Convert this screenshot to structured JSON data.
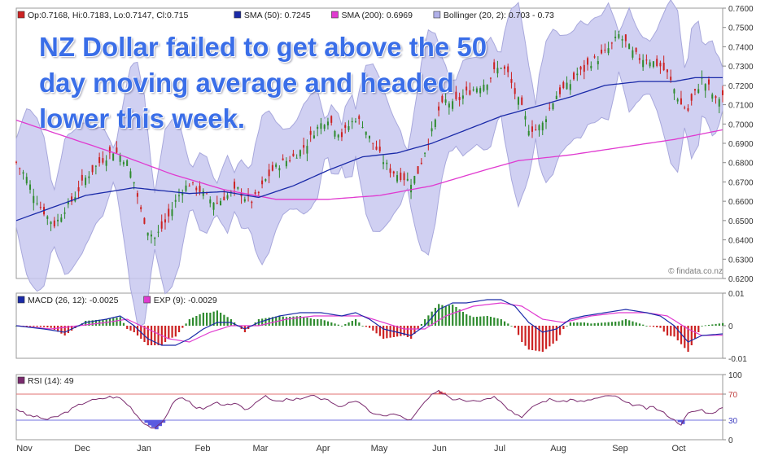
{
  "headline": {
    "lines": [
      "NZ Dollar failed to get above the 50",
      "day moving average and headed",
      "lower this week."
    ]
  },
  "watermark": "© findata.co.nz",
  "colors": {
    "bull_candle": "#2e8b2e",
    "bear_candle": "#cc2222",
    "sma50": "#1a2aa8",
    "sma200": "#e03ad0",
    "bollinger_fill": "#c8c8f0",
    "bollinger_edge": "#a8a8dc",
    "macd_line": "#1a2aa8",
    "exp_line": "#e03ad0",
    "hist_pos": "#2e8b2e",
    "hist_neg": "#cc2222",
    "rsi_line": "#7a2a6e",
    "rsi_fill_low": "#5a5ae0",
    "rsi_fill_high": "#e04a4a",
    "rsi_70_line": "#e07070",
    "rsi_30_line": "#7070e0",
    "headline": "#3a6ee8"
  },
  "chart_data": [
    {
      "type": "candlestick",
      "legend": [
        {
          "label": "Op:0.7168, Hi:0.7183, Lo:0.7147, Cl:0.715",
          "color": "#cc2222"
        },
        {
          "label": "SMA (50): 0.7245",
          "color": "#1a2aa8"
        },
        {
          "label": "SMA (200): 0.6969",
          "color": "#e03ad0"
        },
        {
          "label": "Bollinger (20, 2): 0.703 - 0.73",
          "color": "#b0b0e8"
        }
      ],
      "ylim": [
        0.62,
        0.76
      ],
      "yticks": [
        "0.7600",
        "0.7500",
        "0.7400",
        "0.7300",
        "0.7200",
        "0.7100",
        "0.7000",
        "0.6900",
        "0.6800",
        "0.6700",
        "0.6600",
        "0.6500",
        "0.6400",
        "0.6300",
        "0.6200"
      ],
      "x_months": [
        "Nov",
        "Dec",
        "Jan",
        "Feb",
        "Mar",
        "Apr",
        "May",
        "Jun",
        "Jul",
        "Aug",
        "Sep",
        "Oct"
      ],
      "close_path": [
        [
          0,
          0.68
        ],
        [
          3,
          0.672
        ],
        [
          5,
          0.664
        ],
        [
          7,
          0.657
        ],
        [
          9,
          0.652
        ],
        [
          11,
          0.648
        ],
        [
          12,
          0.65
        ],
        [
          14,
          0.656
        ],
        [
          16,
          0.66
        ],
        [
          18,
          0.666
        ],
        [
          20,
          0.672
        ],
        [
          22,
          0.676
        ],
        [
          24,
          0.68
        ],
        [
          26,
          0.683
        ],
        [
          28,
          0.686
        ],
        [
          30,
          0.684
        ],
        [
          32,
          0.68
        ],
        [
          34,
          0.67
        ],
        [
          36,
          0.655
        ],
        [
          38,
          0.645
        ],
        [
          40,
          0.641
        ],
        [
          42,
          0.646
        ],
        [
          44,
          0.652
        ],
        [
          46,
          0.66
        ],
        [
          48,
          0.666
        ],
        [
          50,
          0.669
        ],
        [
          52,
          0.667
        ],
        [
          54,
          0.664
        ],
        [
          56,
          0.661
        ],
        [
          58,
          0.659
        ],
        [
          60,
          0.662
        ],
        [
          62,
          0.664
        ],
        [
          64,
          0.666
        ],
        [
          66,
          0.662
        ],
        [
          68,
          0.66
        ],
        [
          70,
          0.664
        ],
        [
          72,
          0.671
        ],
        [
          74,
          0.676
        ],
        [
          76,
          0.679
        ],
        [
          78,
          0.681
        ],
        [
          80,
          0.683
        ],
        [
          82,
          0.686
        ],
        [
          84,
          0.69
        ],
        [
          86,
          0.696
        ],
        [
          88,
          0.7
        ],
        [
          90,
          0.703
        ],
        [
          92,
          0.698
        ],
        [
          94,
          0.694
        ],
        [
          96,
          0.699
        ],
        [
          98,
          0.703
        ],
        [
          100,
          0.7
        ],
        [
          102,
          0.693
        ],
        [
          104,
          0.687
        ],
        [
          106,
          0.681
        ],
        [
          108,
          0.676
        ],
        [
          110,
          0.674
        ],
        [
          112,
          0.672
        ],
        [
          114,
          0.67
        ],
        [
          116,
          0.675
        ],
        [
          118,
          0.686
        ],
        [
          120,
          0.696
        ],
        [
          122,
          0.707
        ],
        [
          124,
          0.712
        ],
        [
          126,
          0.71
        ],
        [
          128,
          0.713
        ],
        [
          130,
          0.716
        ],
        [
          132,
          0.718
        ],
        [
          134,
          0.72
        ],
        [
          136,
          0.722
        ],
        [
          138,
          0.727
        ],
        [
          140,
          0.73
        ],
        [
          142,
          0.726
        ],
        [
          144,
          0.716
        ],
        [
          146,
          0.708
        ],
        [
          148,
          0.698
        ],
        [
          150,
          0.697
        ],
        [
          152,
          0.7
        ],
        [
          154,
          0.708
        ],
        [
          156,
          0.715
        ],
        [
          158,
          0.718
        ],
        [
          160,
          0.721
        ],
        [
          162,
          0.726
        ],
        [
          164,
          0.728
        ],
        [
          166,
          0.732
        ],
        [
          168,
          0.734
        ],
        [
          170,
          0.737
        ],
        [
          172,
          0.741
        ],
        [
          174,
          0.746
        ],
        [
          176,
          0.742
        ],
        [
          178,
          0.737
        ],
        [
          180,
          0.734
        ],
        [
          182,
          0.734
        ],
        [
          184,
          0.732
        ],
        [
          186,
          0.73
        ],
        [
          188,
          0.726
        ],
        [
          190,
          0.718
        ],
        [
          192,
          0.71
        ],
        [
          194,
          0.707
        ],
        [
          196,
          0.716
        ],
        [
          198,
          0.723
        ],
        [
          200,
          0.719
        ],
        [
          202,
          0.712
        ],
        [
          204,
          0.715
        ]
      ],
      "sma50_path": [
        [
          0,
          0.65
        ],
        [
          20,
          0.663
        ],
        [
          34,
          0.667
        ],
        [
          50,
          0.664
        ],
        [
          60,
          0.665
        ],
        [
          70,
          0.662
        ],
        [
          80,
          0.668
        ],
        [
          90,
          0.676
        ],
        [
          100,
          0.683
        ],
        [
          110,
          0.685
        ],
        [
          120,
          0.69
        ],
        [
          130,
          0.697
        ],
        [
          140,
          0.704
        ],
        [
          150,
          0.709
        ],
        [
          160,
          0.714
        ],
        [
          170,
          0.72
        ],
        [
          180,
          0.722
        ],
        [
          190,
          0.722
        ],
        [
          196,
          0.724
        ],
        [
          204,
          0.724
        ]
      ],
      "sma200_path": [
        [
          0,
          0.702
        ],
        [
          15,
          0.693
        ],
        [
          30,
          0.684
        ],
        [
          45,
          0.674
        ],
        [
          60,
          0.666
        ],
        [
          75,
          0.661
        ],
        [
          90,
          0.661
        ],
        [
          105,
          0.663
        ],
        [
          120,
          0.668
        ],
        [
          135,
          0.676
        ],
        [
          145,
          0.681
        ],
        [
          160,
          0.684
        ],
        [
          175,
          0.688
        ],
        [
          190,
          0.692
        ],
        [
          204,
          0.697
        ]
      ]
    },
    {
      "type": "bar+line",
      "legend": [
        {
          "label": "MACD (26, 12): -0.0025",
          "color": "#1a2aa8"
        },
        {
          "label": "EXP (9): -0.0029",
          "color": "#e03ad0"
        }
      ],
      "ylim": [
        -0.01,
        0.01
      ],
      "yticks": [
        "0.01",
        "0",
        "-0.01"
      ],
      "macd_path": [
        [
          0,
          0
        ],
        [
          8,
          -0.001
        ],
        [
          14,
          -0.002
        ],
        [
          20,
          0.001
        ],
        [
          26,
          0.002
        ],
        [
          30,
          0.003
        ],
        [
          34,
          0
        ],
        [
          38,
          -0.004
        ],
        [
          42,
          -0.006
        ],
        [
          46,
          -0.006
        ],
        [
          50,
          -0.004
        ],
        [
          54,
          -0.001
        ],
        [
          58,
          0.001
        ],
        [
          62,
          0.001
        ],
        [
          66,
          -0.001
        ],
        [
          70,
          0.001
        ],
        [
          76,
          0.003
        ],
        [
          82,
          0.004
        ],
        [
          88,
          0.004
        ],
        [
          94,
          0.003
        ],
        [
          98,
          0.004
        ],
        [
          102,
          0.002
        ],
        [
          106,
          -0.001
        ],
        [
          110,
          -0.002
        ],
        [
          114,
          -0.003
        ],
        [
          118,
          0
        ],
        [
          122,
          0.005
        ],
        [
          126,
          0.007
        ],
        [
          130,
          0.007
        ],
        [
          136,
          0.008
        ],
        [
          140,
          0.008
        ],
        [
          144,
          0.006
        ],
        [
          148,
          0.001
        ],
        [
          152,
          -0.002
        ],
        [
          156,
          -0.001
        ],
        [
          160,
          0.002
        ],
        [
          164,
          0.003
        ],
        [
          170,
          0.004
        ],
        [
          176,
          0.005
        ],
        [
          182,
          0.004
        ],
        [
          186,
          0.003
        ],
        [
          190,
          0
        ],
        [
          194,
          -0.005
        ],
        [
          198,
          -0.003
        ],
        [
          204,
          -0.0025
        ]
      ],
      "exp_path": [
        [
          0,
          0
        ],
        [
          10,
          -0.001
        ],
        [
          18,
          0
        ],
        [
          26,
          0.001
        ],
        [
          32,
          0.002
        ],
        [
          38,
          -0.001
        ],
        [
          44,
          -0.004
        ],
        [
          50,
          -0.005
        ],
        [
          56,
          -0.002
        ],
        [
          62,
          0
        ],
        [
          70,
          0
        ],
        [
          78,
          0.002
        ],
        [
          86,
          0.003
        ],
        [
          94,
          0.003
        ],
        [
          100,
          0.003
        ],
        [
          106,
          0.001
        ],
        [
          112,
          -0.001
        ],
        [
          118,
          -0.001
        ],
        [
          124,
          0.003
        ],
        [
          132,
          0.006
        ],
        [
          140,
          0.007
        ],
        [
          146,
          0.006
        ],
        [
          152,
          0.002
        ],
        [
          158,
          0.001
        ],
        [
          166,
          0.003
        ],
        [
          174,
          0.004
        ],
        [
          182,
          0.004
        ],
        [
          188,
          0.003
        ],
        [
          194,
          -0.001
        ],
        [
          198,
          -0.003
        ],
        [
          204,
          -0.0029
        ]
      ]
    },
    {
      "type": "line",
      "legend": [
        {
          "label": "RSI (14): 49",
          "color": "#7a2a6e"
        }
      ],
      "ylim": [
        0,
        100
      ],
      "yticks": [
        "100",
        "70",
        "30",
        "0"
      ],
      "reference_lines": [
        70,
        30
      ],
      "rsi_path": [
        [
          0,
          48
        ],
        [
          3,
          38
        ],
        [
          6,
          35
        ],
        [
          9,
          31
        ],
        [
          12,
          36
        ],
        [
          15,
          44
        ],
        [
          18,
          53
        ],
        [
          21,
          60
        ],
        [
          24,
          62
        ],
        [
          27,
          66
        ],
        [
          30,
          64
        ],
        [
          33,
          50
        ],
        [
          36,
          30
        ],
        [
          38,
          22
        ],
        [
          40,
          16
        ],
        [
          42,
          26
        ],
        [
          44,
          44
        ],
        [
          46,
          62
        ],
        [
          48,
          64
        ],
        [
          50,
          58
        ],
        [
          52,
          50
        ],
        [
          54,
          46
        ],
        [
          56,
          52
        ],
        [
          58,
          56
        ],
        [
          60,
          54
        ],
        [
          62,
          52
        ],
        [
          64,
          56
        ],
        [
          66,
          46
        ],
        [
          68,
          52
        ],
        [
          70,
          62
        ],
        [
          72,
          66
        ],
        [
          74,
          60
        ],
        [
          76,
          58
        ],
        [
          78,
          62
        ],
        [
          80,
          60
        ],
        [
          82,
          64
        ],
        [
          84,
          66
        ],
        [
          86,
          68
        ],
        [
          88,
          60
        ],
        [
          90,
          63
        ],
        [
          92,
          54
        ],
        [
          94,
          50
        ],
        [
          96,
          58
        ],
        [
          98,
          60
        ],
        [
          100,
          52
        ],
        [
          102,
          44
        ],
        [
          104,
          38
        ],
        [
          106,
          36
        ],
        [
          108,
          40
        ],
        [
          110,
          38
        ],
        [
          112,
          33
        ],
        [
          114,
          30
        ],
        [
          116,
          44
        ],
        [
          118,
          58
        ],
        [
          120,
          68
        ],
        [
          122,
          74
        ],
        [
          124,
          70
        ],
        [
          126,
          62
        ],
        [
          128,
          64
        ],
        [
          130,
          60
        ],
        [
          132,
          62
        ],
        [
          134,
          60
        ],
        [
          136,
          64
        ],
        [
          138,
          66
        ],
        [
          140,
          60
        ],
        [
          142,
          48
        ],
        [
          144,
          40
        ],
        [
          146,
          36
        ],
        [
          148,
          44
        ],
        [
          150,
          54
        ],
        [
          152,
          58
        ],
        [
          154,
          62
        ],
        [
          156,
          60
        ],
        [
          158,
          58
        ],
        [
          160,
          62
        ],
        [
          162,
          60
        ],
        [
          164,
          58
        ],
        [
          166,
          62
        ],
        [
          168,
          64
        ],
        [
          170,
          66
        ],
        [
          172,
          68
        ],
        [
          174,
          64
        ],
        [
          176,
          56
        ],
        [
          178,
          54
        ],
        [
          180,
          52
        ],
        [
          182,
          48
        ],
        [
          184,
          50
        ],
        [
          186,
          44
        ],
        [
          188,
          38
        ],
        [
          190,
          30
        ],
        [
          192,
          24
        ],
        [
          194,
          40
        ],
        [
          196,
          44
        ],
        [
          198,
          46
        ],
        [
          200,
          40
        ],
        [
          202,
          44
        ],
        [
          204,
          49
        ]
      ]
    }
  ]
}
